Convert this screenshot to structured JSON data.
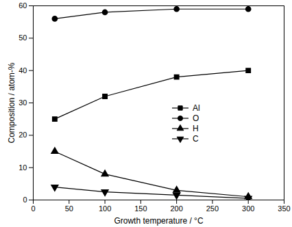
{
  "chart_data": {
    "type": "line",
    "x_label": "Growth temperature / °C",
    "y_label": "Composition / atom-%",
    "x": [
      30,
      100,
      200,
      300
    ],
    "series": [
      {
        "name": "Al",
        "color": "#000000",
        "marker": "square",
        "line_style": "solid",
        "values": [
          25,
          32,
          38,
          40
        ]
      },
      {
        "name": "O",
        "color": "#000000",
        "marker": "circle",
        "line_style": "solid",
        "values": [
          56,
          58,
          59,
          59
        ]
      },
      {
        "name": "H",
        "color": "#000000",
        "marker": "triangle",
        "line_style": "solid",
        "values": [
          15,
          8,
          3,
          1
        ]
      },
      {
        "name": "C",
        "color": "#000000",
        "marker": "triangle-down",
        "line_style": "solid",
        "values": [
          4,
          2.5,
          1.5,
          0.5
        ]
      }
    ],
    "xlim": [
      0,
      350
    ],
    "xticks": [
      0,
      50,
      100,
      150,
      200,
      250,
      300,
      350
    ],
    "ylim": [
      0,
      60
    ],
    "yticks": [
      0,
      10,
      20,
      30,
      40,
      50,
      60
    ],
    "grid": false,
    "legend": "center right"
  }
}
